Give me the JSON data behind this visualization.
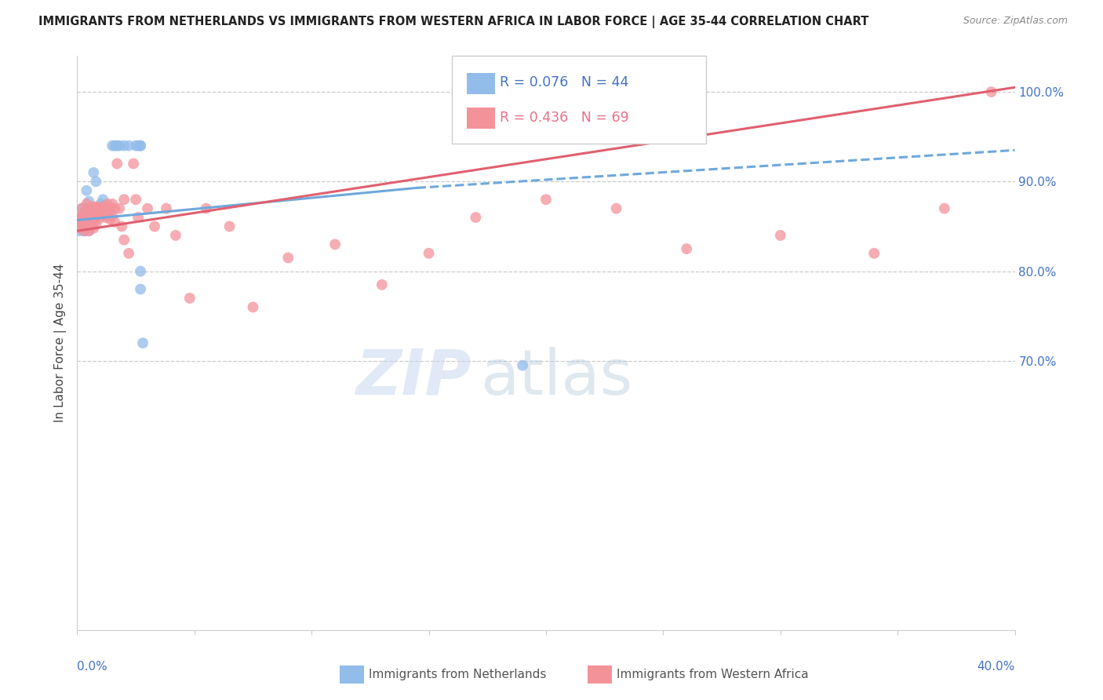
{
  "title": "IMMIGRANTS FROM NETHERLANDS VS IMMIGRANTS FROM WESTERN AFRICA IN LABOR FORCE | AGE 35-44 CORRELATION CHART",
  "source": "Source: ZipAtlas.com",
  "ylabel": "In Labor Force | Age 35-44",
  "blue_R": 0.076,
  "blue_N": 44,
  "pink_R": 0.436,
  "pink_N": 69,
  "blue_color": "#92BCEA",
  "pink_color": "#F4929A",
  "blue_line_color": "#6FA8DC",
  "pink_line_color": "#E06070",
  "legend_label_blue": "Immigrants from Netherlands",
  "legend_label_pink": "Immigrants from Western Africa",
  "xmin": 0.0,
  "xmax": 0.4,
  "ymin": 0.4,
  "ymax": 1.04,
  "blue_scatter_x": [
    0.001,
    0.001,
    0.001,
    0.002,
    0.002,
    0.002,
    0.002,
    0.003,
    0.003,
    0.003,
    0.003,
    0.004,
    0.004,
    0.004,
    0.004,
    0.005,
    0.005,
    0.005,
    0.006,
    0.006,
    0.007,
    0.007,
    0.008,
    0.008,
    0.009,
    0.01,
    0.011,
    0.012,
    0.013,
    0.014,
    0.015,
    0.016,
    0.017,
    0.018,
    0.02,
    0.022,
    0.025,
    0.026,
    0.027,
    0.027,
    0.027,
    0.027,
    0.028,
    0.19
  ],
  "blue_scatter_y": [
    0.858,
    0.85,
    0.845,
    0.87,
    0.86,
    0.855,
    0.848,
    0.865,
    0.858,
    0.852,
    0.845,
    0.89,
    0.87,
    0.86,
    0.855,
    0.878,
    0.86,
    0.845,
    0.87,
    0.855,
    0.91,
    0.87,
    0.9,
    0.86,
    0.87,
    0.875,
    0.88,
    0.87,
    0.87,
    0.865,
    0.94,
    0.94,
    0.94,
    0.94,
    0.94,
    0.94,
    0.94,
    0.94,
    0.94,
    0.94,
    0.8,
    0.78,
    0.72,
    0.695
  ],
  "pink_scatter_x": [
    0.001,
    0.001,
    0.001,
    0.002,
    0.002,
    0.002,
    0.003,
    0.003,
    0.003,
    0.004,
    0.004,
    0.004,
    0.005,
    0.005,
    0.005,
    0.006,
    0.006,
    0.006,
    0.007,
    0.007,
    0.007,
    0.008,
    0.008,
    0.008,
    0.009,
    0.009,
    0.01,
    0.01,
    0.011,
    0.011,
    0.012,
    0.012,
    0.013,
    0.013,
    0.014,
    0.014,
    0.015,
    0.015,
    0.016,
    0.016,
    0.017,
    0.018,
    0.019,
    0.02,
    0.02,
    0.022,
    0.024,
    0.025,
    0.026,
    0.03,
    0.033,
    0.038,
    0.042,
    0.048,
    0.055,
    0.065,
    0.075,
    0.09,
    0.11,
    0.13,
    0.15,
    0.17,
    0.2,
    0.23,
    0.26,
    0.3,
    0.34,
    0.37,
    0.39
  ],
  "pink_scatter_y": [
    0.86,
    0.855,
    0.848,
    0.87,
    0.86,
    0.852,
    0.865,
    0.858,
    0.845,
    0.875,
    0.862,
    0.85,
    0.87,
    0.858,
    0.845,
    0.872,
    0.86,
    0.85,
    0.87,
    0.86,
    0.848,
    0.872,
    0.862,
    0.852,
    0.87,
    0.858,
    0.87,
    0.862,
    0.872,
    0.862,
    0.87,
    0.86,
    0.875,
    0.862,
    0.87,
    0.858,
    0.875,
    0.862,
    0.87,
    0.855,
    0.92,
    0.87,
    0.85,
    0.835,
    0.88,
    0.82,
    0.92,
    0.88,
    0.86,
    0.87,
    0.85,
    0.87,
    0.84,
    0.77,
    0.87,
    0.85,
    0.76,
    0.815,
    0.83,
    0.785,
    0.82,
    0.86,
    0.88,
    0.87,
    0.825,
    0.84,
    0.82,
    0.87,
    1.0
  ],
  "watermark_zip": "ZIP",
  "watermark_atlas": "atlas",
  "grid_color": "#CCCCCC",
  "ytick_vals": [
    0.7,
    0.8,
    0.9,
    1.0
  ],
  "ytick_labels": [
    "70.0%",
    "80.0%",
    "90.0%",
    "100.0%"
  ]
}
